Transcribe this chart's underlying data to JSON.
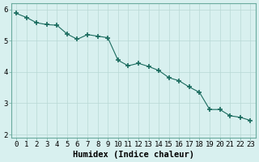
{
  "x": [
    0,
    1,
    2,
    3,
    4,
    5,
    6,
    7,
    8,
    9,
    10,
    11,
    12,
    13,
    14,
    15,
    16,
    17,
    18,
    19,
    20,
    21,
    22,
    23
  ],
  "y": [
    5.88,
    5.75,
    5.58,
    5.52,
    5.5,
    5.22,
    5.05,
    5.2,
    5.15,
    5.1,
    4.38,
    4.2,
    4.28,
    4.18,
    4.05,
    3.82,
    3.72,
    3.52,
    3.35,
    2.8,
    2.8,
    2.6,
    2.55,
    2.45
  ],
  "line_color": "#1a6b5e",
  "marker": "+",
  "markersize": 4,
  "markeredgewidth": 1.2,
  "linewidth": 0.8,
  "bg_color": "#d8f0ef",
  "grid_color": "#b8d8d4",
  "xlabel": "Humidex (Indice chaleur)",
  "ylabel": "",
  "ylim": [
    1.9,
    6.2
  ],
  "xlim": [
    -0.5,
    23.5
  ],
  "yticks": [
    2,
    3,
    4,
    5,
    6
  ],
  "xticks": [
    0,
    1,
    2,
    3,
    4,
    5,
    6,
    7,
    8,
    9,
    10,
    11,
    12,
    13,
    14,
    15,
    16,
    17,
    18,
    19,
    20,
    21,
    22,
    23
  ],
  "xlabel_fontsize": 7.5,
  "tick_fontsize": 6.5,
  "title": ""
}
